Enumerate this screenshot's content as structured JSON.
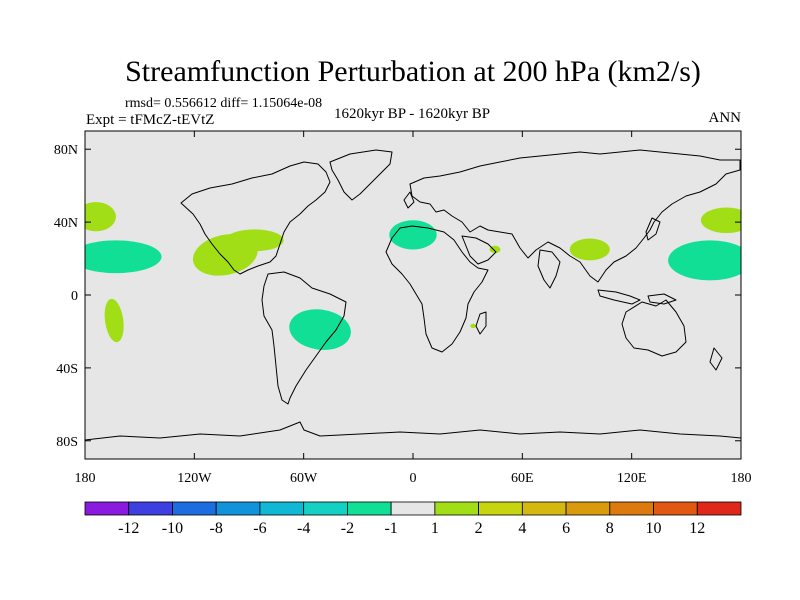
{
  "chart_data": {
    "type": "heatmap",
    "title": "Streamfunction Perturbation at 200 hPa (km2/s)",
    "stats": "rmsd= 0.556612 diff= 1.15064e-08",
    "experiment": "Expt = tFMcZ-tEVtZ",
    "period": "1620kyr BP - 1620kyr BP",
    "season": "ANN",
    "projection": "cylindrical equidistant",
    "lon_range": [
      -180,
      180
    ],
    "lat_range": [
      -90,
      90
    ],
    "x_ticks": [
      {
        "value": -180,
        "label": "180"
      },
      {
        "value": -120,
        "label": "120W"
      },
      {
        "value": -60,
        "label": "60W"
      },
      {
        "value": 0,
        "label": "0"
      },
      {
        "value": 60,
        "label": "60E"
      },
      {
        "value": 120,
        "label": "120E"
      },
      {
        "value": 180,
        "label": "180"
      }
    ],
    "y_ticks": [
      {
        "value": 80,
        "label": "80N"
      },
      {
        "value": 40,
        "label": "40N"
      },
      {
        "value": 0,
        "label": "0"
      },
      {
        "value": -40,
        "label": "40S"
      },
      {
        "value": -80,
        "label": "80S"
      }
    ],
    "colorbar": {
      "colors": [
        "#8a1adf",
        "#3d3fe0",
        "#1c6ee0",
        "#1193dc",
        "#10b8d3",
        "#14d1c4",
        "#11df96",
        "#e6e6e6",
        "#a2de16",
        "#c6d510",
        "#d4b80f",
        "#d99a0e",
        "#dd7a0e",
        "#e05812",
        "#e0281a"
      ],
      "labels": [
        "-12",
        "-10",
        "-8",
        "-6",
        "-4",
        "-2",
        "-1",
        "1",
        "2",
        "4",
        "6",
        "8",
        "10",
        "12"
      ]
    },
    "regions": [
      {
        "name": "NE Pacific positive",
        "class": "1 to 2",
        "color": "#a2de16",
        "lon": -174,
        "lat": 43,
        "rlon": 11,
        "rlat": 8,
        "rot": 0
      },
      {
        "name": "Central Pacific negative",
        "class": "-1 to -2",
        "color": "#11df96",
        "lon": -163,
        "lat": 21,
        "rlon": 25,
        "rlat": 9,
        "rot": 0
      },
      {
        "name": "South Pacific positive",
        "class": "1 to 2",
        "color": "#a2de16",
        "lon": -164,
        "lat": -14,
        "rlon": 5,
        "rlat": 12,
        "rot": -8
      },
      {
        "name": "Mexico positive",
        "class": "1 to 2",
        "color": "#a2de16",
        "lon": -103,
        "lat": 22,
        "rlon": 18,
        "rlat": 11,
        "rot": -12
      },
      {
        "name": "Eastern US positive",
        "class": "1 to 2",
        "color": "#a2de16",
        "lon": -87,
        "lat": 30,
        "rlon": 16,
        "rlat": 6,
        "rot": 0
      },
      {
        "name": "South America negative",
        "class": "-1 to -2",
        "color": "#11df96",
        "lon": -51,
        "lat": -19,
        "rlon": 17,
        "rlat": 11,
        "rot": 8
      },
      {
        "name": "North Africa negative",
        "class": "-1 to -2",
        "color": "#11df96",
        "lon": 0,
        "lat": 33,
        "rlon": 13,
        "rlat": 8,
        "rot": 0
      },
      {
        "name": "Arabia positive",
        "class": "1 to 2",
        "color": "#a2de16",
        "lon": 45,
        "lat": 25,
        "rlon": 3,
        "rlat": 2,
        "rot": 0
      },
      {
        "name": "Southern Africa positive",
        "class": "1 to 2",
        "color": "#a2de16",
        "lon": 33,
        "lat": -17,
        "rlon": 1.5,
        "rlat": 1.2,
        "rot": 0
      },
      {
        "name": "South Asia positive",
        "class": "1 to 2",
        "color": "#a2de16",
        "lon": 97,
        "lat": 25,
        "rlon": 11,
        "rlat": 6,
        "rot": 0
      },
      {
        "name": "West Pacific negative",
        "class": "-1 to -2",
        "color": "#11df96",
        "lon": 163,
        "lat": 19,
        "rlon": 23,
        "rlat": 11,
        "rot": 0
      },
      {
        "name": "NW Pacific positive",
        "class": "1 to 2",
        "color": "#a2de16",
        "lon": 172,
        "lat": 41,
        "rlon": 14,
        "rlat": 7,
        "rot": 0
      }
    ],
    "background_class": "-1 to 1",
    "background_color": "#e6e6e6"
  }
}
